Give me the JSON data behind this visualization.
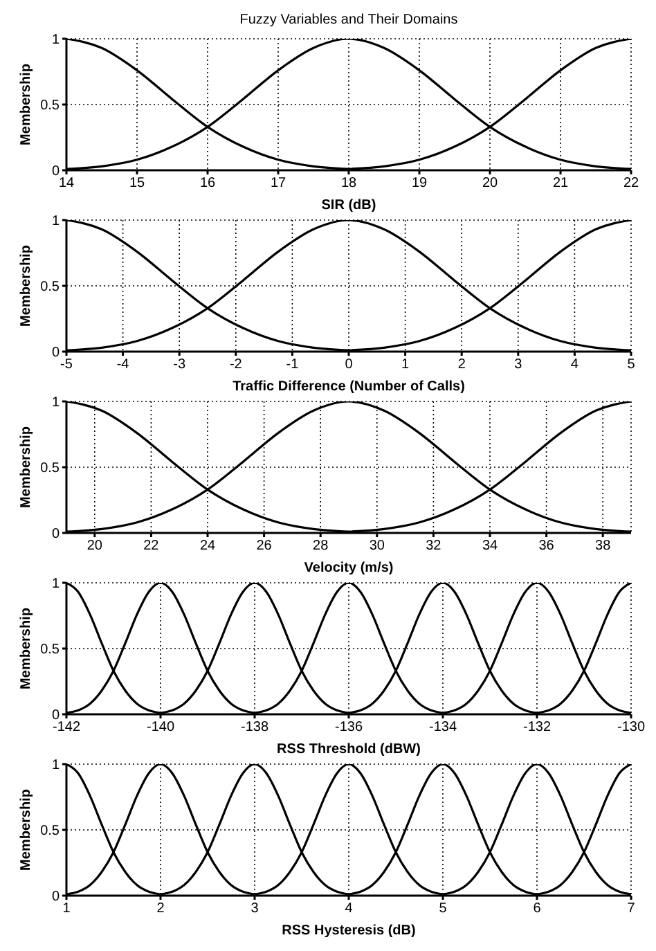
{
  "chart_data": [
    {
      "type": "line",
      "title": "Fuzzy Variables and Their Domains",
      "xlabel": "SIR (dB)",
      "ylabel": "Membership",
      "xlim": [
        14,
        22
      ],
      "xticks": [
        14,
        15,
        16,
        17,
        18,
        19,
        20,
        21,
        22
      ],
      "ylim": [
        0,
        1
      ],
      "yticks": [
        0,
        0.5,
        1
      ],
      "grid": true,
      "marker": "none",
      "line_style": "solid",
      "series": [
        {
          "color": "#000000",
          "x": [
            14,
            14.5,
            15,
            15.5,
            16,
            16.5,
            17,
            17.5,
            18
          ],
          "values": [
            1,
            0.93,
            0.76,
            0.54,
            0.33,
            0.18,
            0.08,
            0.03,
            0.01
          ]
        },
        {
          "color": "#000000",
          "x": [
            14,
            14.5,
            15,
            15.5,
            16,
            16.5,
            17,
            17.5,
            18,
            18.5,
            19,
            19.5,
            20,
            20.5,
            21,
            21.5,
            22
          ],
          "values": [
            0.01,
            0.03,
            0.08,
            0.18,
            0.33,
            0.54,
            0.76,
            0.93,
            1,
            0.93,
            0.76,
            0.54,
            0.33,
            0.18,
            0.08,
            0.03,
            0.01
          ]
        },
        {
          "color": "#000000",
          "x": [
            18,
            18.5,
            19,
            19.5,
            20,
            20.5,
            21,
            21.5,
            22
          ],
          "values": [
            0.01,
            0.03,
            0.08,
            0.18,
            0.33,
            0.54,
            0.76,
            0.93,
            1
          ]
        }
      ]
    },
    {
      "type": "line",
      "xlabel": "Traffic Difference (Number of Calls)",
      "ylabel": "Membership",
      "xlim": [
        -5,
        5
      ],
      "xticks": [
        -5,
        -4,
        -3,
        -2,
        -1,
        0,
        1,
        2,
        3,
        4,
        5
      ],
      "ylim": [
        0,
        1
      ],
      "yticks": [
        0,
        0.5,
        1
      ],
      "grid": true,
      "marker": "none",
      "line_style": "solid",
      "series": [
        {
          "color": "#000000",
          "x": [
            -5,
            -4.375,
            -3.75,
            -3.125,
            -2.5,
            -1.875,
            -1.25,
            -0.625,
            0
          ],
          "values": [
            1,
            0.93,
            0.76,
            0.54,
            0.33,
            0.18,
            0.08,
            0.03,
            0.01
          ]
        },
        {
          "color": "#000000",
          "x": [
            -5,
            -4.375,
            -3.75,
            -3.125,
            -2.5,
            -1.875,
            -1.25,
            -0.625,
            0,
            0.625,
            1.25,
            1.875,
            2.5,
            3.125,
            3.75,
            4.375,
            5
          ],
          "values": [
            0.01,
            0.03,
            0.08,
            0.18,
            0.33,
            0.54,
            0.76,
            0.93,
            1,
            0.93,
            0.76,
            0.54,
            0.33,
            0.18,
            0.08,
            0.03,
            0.01
          ]
        },
        {
          "color": "#000000",
          "x": [
            0,
            0.625,
            1.25,
            1.875,
            2.5,
            3.125,
            3.75,
            4.375,
            5
          ],
          "values": [
            0.01,
            0.03,
            0.08,
            0.18,
            0.33,
            0.54,
            0.76,
            0.93,
            1
          ]
        }
      ]
    },
    {
      "type": "line",
      "xlabel": "Velocity (m/s)",
      "ylabel": "Membership",
      "xlim": [
        19,
        39
      ],
      "xticks": [
        20,
        22,
        24,
        26,
        28,
        30,
        32,
        34,
        36,
        38
      ],
      "ylim": [
        0,
        1
      ],
      "yticks": [
        0,
        0.5,
        1
      ],
      "grid": true,
      "marker": "none",
      "line_style": "solid",
      "series": [
        {
          "color": "#000000",
          "x": [
            19,
            20.25,
            21.5,
            22.75,
            24,
            25.25,
            26.5,
            27.75,
            29
          ],
          "values": [
            1,
            0.93,
            0.76,
            0.54,
            0.33,
            0.18,
            0.08,
            0.03,
            0.01
          ]
        },
        {
          "color": "#000000",
          "x": [
            19,
            20.25,
            21.5,
            22.75,
            24,
            25.25,
            26.5,
            27.75,
            29,
            30.25,
            31.5,
            32.75,
            34,
            35.25,
            36.5,
            37.75,
            39
          ],
          "values": [
            0.01,
            0.03,
            0.08,
            0.18,
            0.33,
            0.54,
            0.76,
            0.93,
            1,
            0.93,
            0.76,
            0.54,
            0.33,
            0.18,
            0.08,
            0.03,
            0.01
          ]
        },
        {
          "color": "#000000",
          "x": [
            29,
            30.25,
            31.5,
            32.75,
            34,
            35.25,
            36.5,
            37.75,
            39
          ],
          "values": [
            0.01,
            0.03,
            0.08,
            0.18,
            0.33,
            0.54,
            0.76,
            0.93,
            1
          ]
        }
      ]
    },
    {
      "type": "line",
      "xlabel": "RSS Threshold (dBW)",
      "ylabel": "Membership",
      "xlim": [
        -142,
        -130
      ],
      "xticks": [
        -142,
        -140,
        -138,
        -136,
        -134,
        -132,
        -130
      ],
      "ylim": [
        0,
        1
      ],
      "yticks": [
        0,
        0.5,
        1
      ],
      "grid": true,
      "marker": "none",
      "line_style": "solid",
      "series": [
        {
          "color": "#000000",
          "x": [
            -142,
            -141.75,
            -141.5,
            -141.25,
            -141,
            -140.75,
            -140.5,
            -140.25,
            -140
          ],
          "values": [
            1,
            0.93,
            0.76,
            0.54,
            0.33,
            0.18,
            0.08,
            0.03,
            0.01
          ]
        },
        {
          "color": "#000000",
          "x": [
            -142,
            -141.75,
            -141.5,
            -141.25,
            -141,
            -140.75,
            -140.5,
            -140.25,
            -140,
            -139.75,
            -139.5,
            -139.25,
            -139,
            -138.75,
            -138.5,
            -138.25,
            -138
          ],
          "values": [
            0.01,
            0.03,
            0.08,
            0.18,
            0.33,
            0.54,
            0.76,
            0.93,
            1,
            0.93,
            0.76,
            0.54,
            0.33,
            0.18,
            0.08,
            0.03,
            0.01
          ]
        },
        {
          "color": "#000000",
          "x": [
            -140,
            -139.75,
            -139.5,
            -139.25,
            -139,
            -138.75,
            -138.5,
            -138.25,
            -138,
            -137.75,
            -137.5,
            -137.25,
            -137,
            -136.75,
            -136.5,
            -136.25,
            -136
          ],
          "values": [
            0.01,
            0.03,
            0.08,
            0.18,
            0.33,
            0.54,
            0.76,
            0.93,
            1,
            0.93,
            0.76,
            0.54,
            0.33,
            0.18,
            0.08,
            0.03,
            0.01
          ]
        },
        {
          "color": "#000000",
          "x": [
            -138,
            -137.75,
            -137.5,
            -137.25,
            -137,
            -136.75,
            -136.5,
            -136.25,
            -136,
            -135.75,
            -135.5,
            -135.25,
            -135,
            -134.75,
            -134.5,
            -134.25,
            -134
          ],
          "values": [
            0.01,
            0.03,
            0.08,
            0.18,
            0.33,
            0.54,
            0.76,
            0.93,
            1,
            0.93,
            0.76,
            0.54,
            0.33,
            0.18,
            0.08,
            0.03,
            0.01
          ]
        },
        {
          "color": "#000000",
          "x": [
            -136,
            -135.75,
            -135.5,
            -135.25,
            -135,
            -134.75,
            -134.5,
            -134.25,
            -134,
            -133.75,
            -133.5,
            -133.25,
            -133,
            -132.75,
            -132.5,
            -132.25,
            -132
          ],
          "values": [
            0.01,
            0.03,
            0.08,
            0.18,
            0.33,
            0.54,
            0.76,
            0.93,
            1,
            0.93,
            0.76,
            0.54,
            0.33,
            0.18,
            0.08,
            0.03,
            0.01
          ]
        },
        {
          "color": "#000000",
          "x": [
            -134,
            -133.75,
            -133.5,
            -133.25,
            -133,
            -132.75,
            -132.5,
            -132.25,
            -132,
            -131.75,
            -131.5,
            -131.25,
            -131,
            -130.75,
            -130.5,
            -130.25,
            -130
          ],
          "values": [
            0.01,
            0.03,
            0.08,
            0.18,
            0.33,
            0.54,
            0.76,
            0.93,
            1,
            0.93,
            0.76,
            0.54,
            0.33,
            0.18,
            0.08,
            0.03,
            0.01
          ]
        },
        {
          "color": "#000000",
          "x": [
            -132,
            -131.75,
            -131.5,
            -131.25,
            -131,
            -130.75,
            -130.5,
            -130.25,
            -130
          ],
          "values": [
            0.01,
            0.03,
            0.08,
            0.18,
            0.33,
            0.54,
            0.76,
            0.93,
            1
          ]
        }
      ]
    },
    {
      "type": "line",
      "xlabel": "RSS Hysteresis (dB)",
      "ylabel": "Membership",
      "xlim": [
        1,
        7
      ],
      "xticks": [
        1,
        2,
        3,
        4,
        5,
        6,
        7
      ],
      "ylim": [
        0,
        1
      ],
      "yticks": [
        0,
        0.5,
        1
      ],
      "grid": true,
      "marker": "none",
      "line_style": "solid",
      "series": [
        {
          "color": "#000000",
          "x": [
            1,
            1.125,
            1.25,
            1.375,
            1.5,
            1.625,
            1.75,
            1.875,
            2
          ],
          "values": [
            1,
            0.93,
            0.76,
            0.54,
            0.33,
            0.18,
            0.08,
            0.03,
            0.01
          ]
        },
        {
          "color": "#000000",
          "x": [
            1,
            1.125,
            1.25,
            1.375,
            1.5,
            1.625,
            1.75,
            1.875,
            2,
            2.125,
            2.25,
            2.375,
            2.5,
            2.625,
            2.75,
            2.875,
            3
          ],
          "values": [
            0.01,
            0.03,
            0.08,
            0.18,
            0.33,
            0.54,
            0.76,
            0.93,
            1,
            0.93,
            0.76,
            0.54,
            0.33,
            0.18,
            0.08,
            0.03,
            0.01
          ]
        },
        {
          "color": "#000000",
          "x": [
            2,
            2.125,
            2.25,
            2.375,
            2.5,
            2.625,
            2.75,
            2.875,
            3,
            3.125,
            3.25,
            3.375,
            3.5,
            3.625,
            3.75,
            3.875,
            4
          ],
          "values": [
            0.01,
            0.03,
            0.08,
            0.18,
            0.33,
            0.54,
            0.76,
            0.93,
            1,
            0.93,
            0.76,
            0.54,
            0.33,
            0.18,
            0.08,
            0.03,
            0.01
          ]
        },
        {
          "color": "#000000",
          "x": [
            3,
            3.125,
            3.25,
            3.375,
            3.5,
            3.625,
            3.75,
            3.875,
            4,
            4.125,
            4.25,
            4.375,
            4.5,
            4.625,
            4.75,
            4.875,
            5
          ],
          "values": [
            0.01,
            0.03,
            0.08,
            0.18,
            0.33,
            0.54,
            0.76,
            0.93,
            1,
            0.93,
            0.76,
            0.54,
            0.33,
            0.18,
            0.08,
            0.03,
            0.01
          ]
        },
        {
          "color": "#000000",
          "x": [
            4,
            4.125,
            4.25,
            4.375,
            4.5,
            4.625,
            4.75,
            4.875,
            5,
            5.125,
            5.25,
            5.375,
            5.5,
            5.625,
            5.75,
            5.875,
            6
          ],
          "values": [
            0.01,
            0.03,
            0.08,
            0.18,
            0.33,
            0.54,
            0.76,
            0.93,
            1,
            0.93,
            0.76,
            0.54,
            0.33,
            0.18,
            0.08,
            0.03,
            0.01
          ]
        },
        {
          "color": "#000000",
          "x": [
            5,
            5.125,
            5.25,
            5.375,
            5.5,
            5.625,
            5.75,
            5.875,
            6,
            6.125,
            6.25,
            6.375,
            6.5,
            6.625,
            6.75,
            6.875,
            7
          ],
          "values": [
            0.01,
            0.03,
            0.08,
            0.18,
            0.33,
            0.54,
            0.76,
            0.93,
            1,
            0.93,
            0.76,
            0.54,
            0.33,
            0.18,
            0.08,
            0.03,
            0.01
          ]
        },
        {
          "color": "#000000",
          "x": [
            6,
            6.125,
            6.25,
            6.375,
            6.5,
            6.625,
            6.75,
            6.875,
            7
          ],
          "values": [
            0.01,
            0.03,
            0.08,
            0.18,
            0.33,
            0.54,
            0.76,
            0.93,
            1
          ]
        }
      ]
    }
  ]
}
